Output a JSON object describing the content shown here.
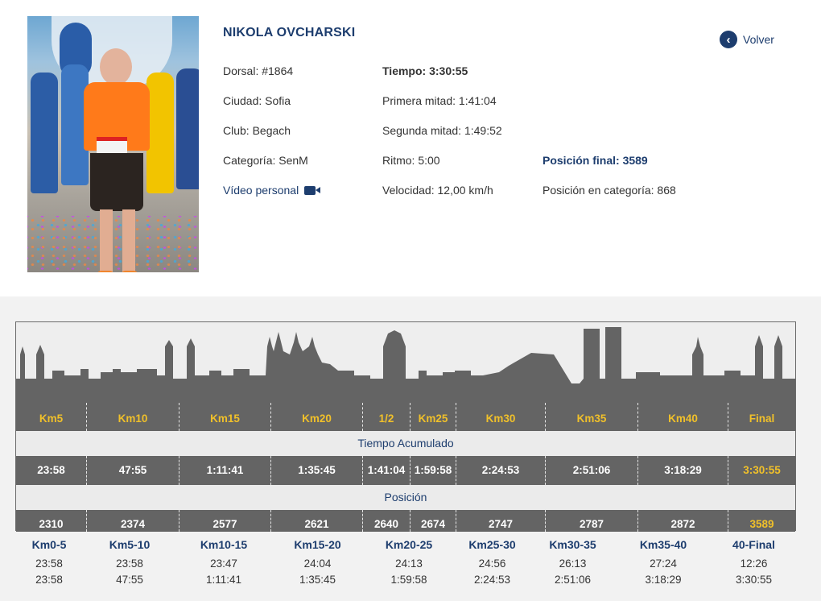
{
  "runner": {
    "name": "NIKOLA OVCHARSKI",
    "dorsal": "Dorsal: #1864",
    "ciudad": "Ciudad: Sofia",
    "club": "Club: Begach",
    "categoria": "Categoría: SenM",
    "video_label": "Vídeo personal",
    "video_icon": "video-camera-icon",
    "tiempo": "Tiempo: 3:30:55",
    "primera_mitad": "Primera mitad: 1:41:04",
    "segunda_mitad": "Segunda mitad: 1:49:52",
    "ritmo": "Ritmo: 5:00",
    "velocidad": "Velocidad: 12,00 km/h",
    "posicion_final": "Posición final: 3589",
    "posicion_categoria": "Posición en categoría: 868"
  },
  "nav": {
    "back_label": "Volver",
    "back_icon": "chevron-left-circle-icon"
  },
  "splits": {
    "checkpoints": [
      "Km5",
      "Km10",
      "Km15",
      "Km20",
      "1/2",
      "Km25",
      "Km30",
      "Km35",
      "Km40",
      "Final"
    ],
    "tiempo_title": "Tiempo Acumulado",
    "tiempos": [
      "23:58",
      "47:55",
      "1:11:41",
      "1:35:45",
      "1:41:04",
      "1:59:58",
      "2:24:53",
      "2:51:06",
      "3:18:29",
      "3:30:55"
    ],
    "posicion_title": "Posición",
    "posiciones": [
      "2310",
      "2374",
      "2577",
      "2621",
      "2640",
      "2674",
      "2747",
      "2787",
      "2872",
      "3589"
    ]
  },
  "partials": [
    {
      "label": "Km0-5",
      "parcial": "23:58",
      "acumulado": "23:58"
    },
    {
      "label": "Km5-10",
      "parcial": "23:58",
      "acumulado": "47:55"
    },
    {
      "label": "Km10-15",
      "parcial": "23:47",
      "acumulado": "1:11:41"
    },
    {
      "label": "Km15-20",
      "parcial": "24:04",
      "acumulado": "1:35:45"
    },
    {
      "label": "Km20-25",
      "parcial": "24:13",
      "acumulado": "1:59:58"
    },
    {
      "label": "Km25-30",
      "parcial": "24:56",
      "acumulado": "2:24:53"
    },
    {
      "label": "Km30-35",
      "parcial": "26:13",
      "acumulado": "2:51:06"
    },
    {
      "label": "Km35-40",
      "parcial": "27:24",
      "acumulado": "3:18:29"
    },
    {
      "label": "40-Final",
      "parcial": "12:26",
      "acumulado": "3:30:55"
    }
  ],
  "colors": {
    "navy": "#1d3d6e",
    "gold": "#f0c02a",
    "dark_gray": "#646464",
    "light_band": "#ebebeb"
  }
}
